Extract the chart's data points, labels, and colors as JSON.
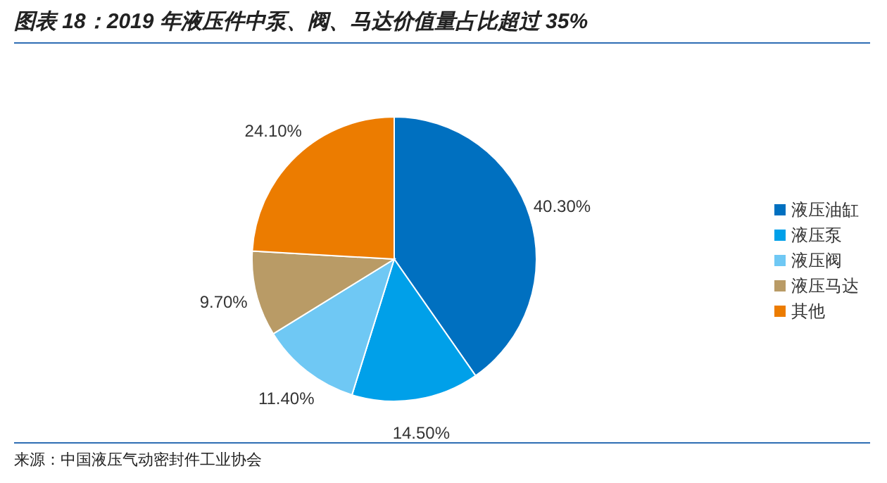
{
  "chart_data": {
    "type": "pie",
    "title": "图表 18：2019 年液压件中泵、阀、马达价值量占比超过 35%",
    "categories": [
      "液压油缸",
      "液压泵",
      "液压阀",
      "液压马达",
      "其他"
    ],
    "values": [
      40.3,
      14.5,
      11.4,
      9.7,
      24.1
    ],
    "value_labels": [
      "40.30%",
      "14.50%",
      "11.40%",
      "9.70%",
      "24.10%"
    ],
    "colors": [
      "#0070c0",
      "#00a0e9",
      "#6fc8f4",
      "#b99b66",
      "#ec7c00"
    ],
    "legend": "right",
    "annotations": [
      "来源：中国液压气动密封件工业协会"
    ]
  }
}
